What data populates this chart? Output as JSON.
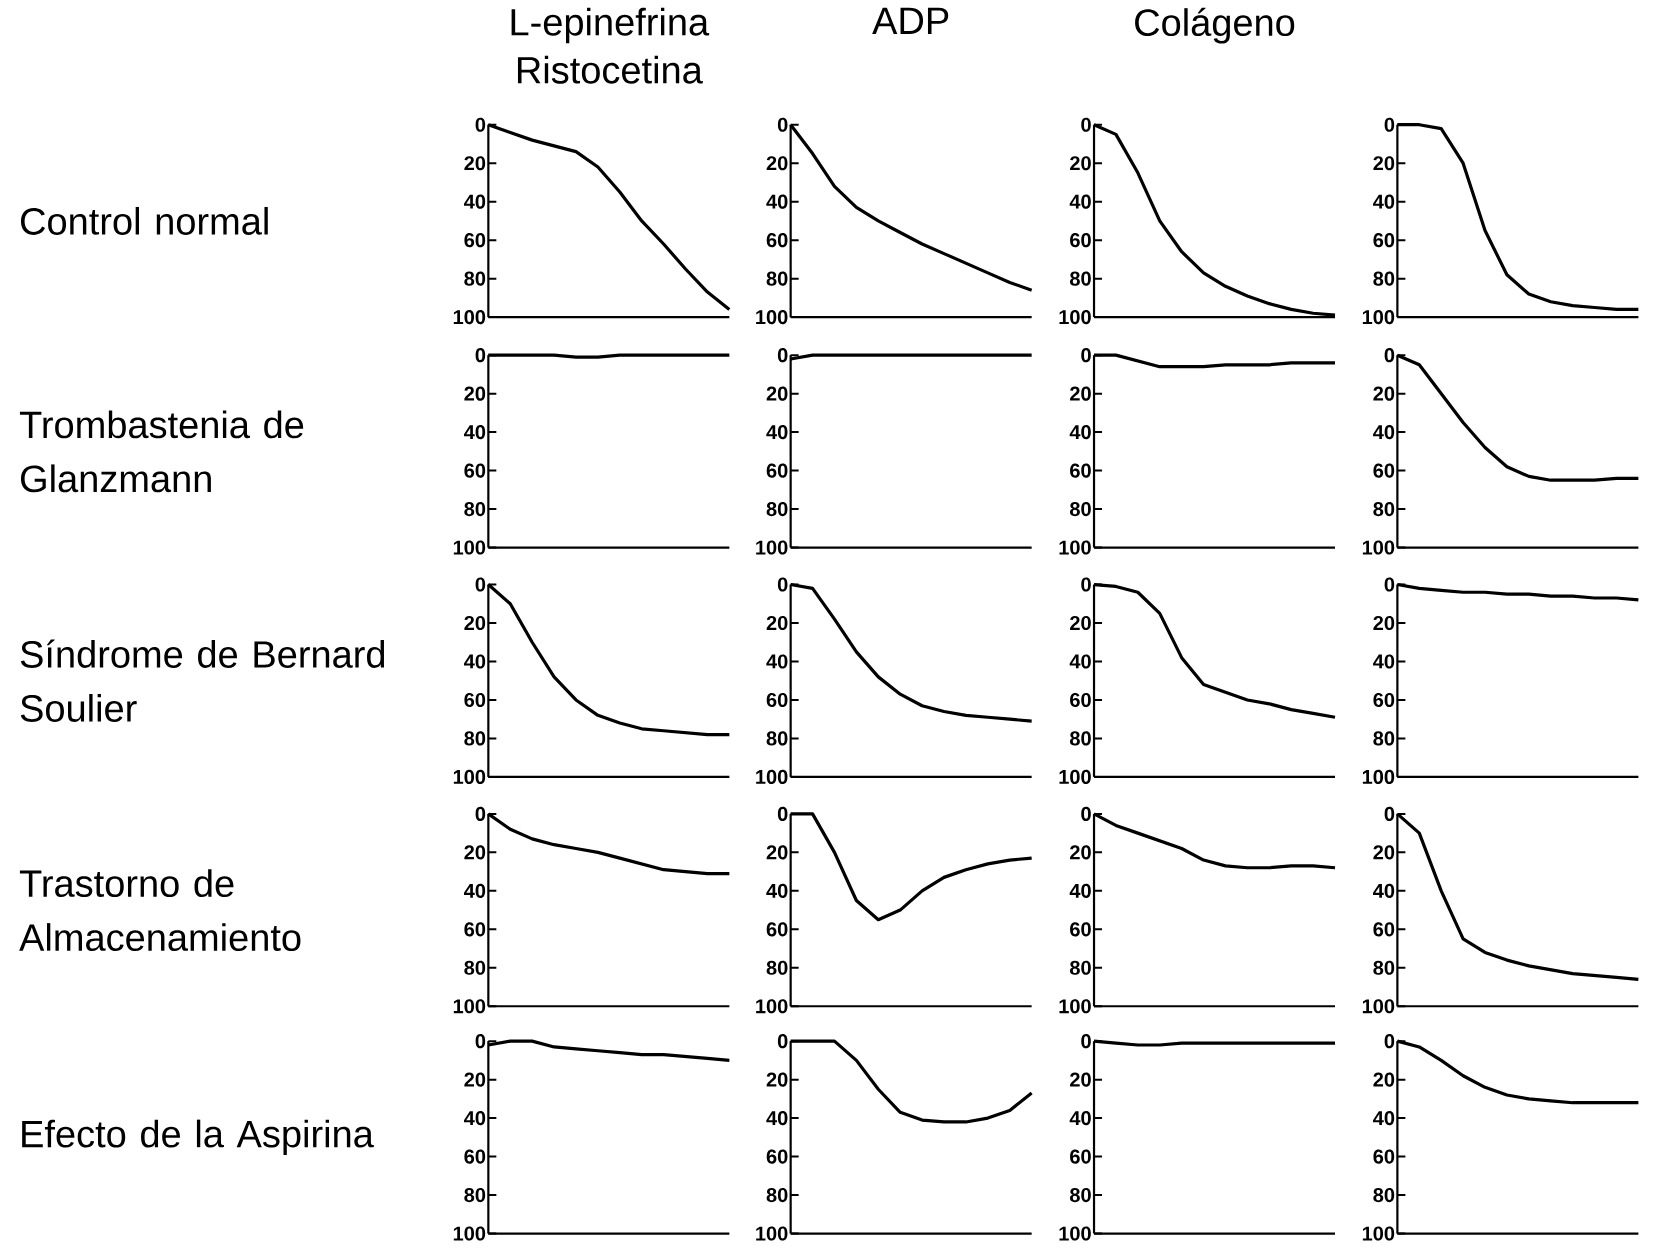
{
  "chart_data": [
    {
      "type": "line",
      "title": "L-epinefrina",
      "subtitle": "Ristocetina",
      "ylabel": "Control normal",
      "categories": [
        null,
        null,
        null,
        null,
        null,
        null,
        null,
        null,
        null,
        null,
        null,
        null
      ],
      "values": [
        0,
        4,
        8,
        11,
        14,
        22,
        35,
        50,
        62,
        75,
        87,
        96
      ],
      "color": "#000000",
      "ylim": [
        100,
        0
      ],
      "yticks": [
        0,
        20,
        40,
        60,
        80,
        100
      ],
      "tick_labels": "y"
    },
    {
      "type": "line",
      "title": "ADP",
      "categories": [
        null,
        null,
        null,
        null,
        null,
        null,
        null,
        null,
        null,
        null,
        null,
        null
      ],
      "values": [
        0,
        15,
        32,
        43,
        50,
        56,
        62,
        67,
        72,
        77,
        82,
        86
      ],
      "color": "#000000",
      "ylim": [
        100,
        0
      ],
      "yticks": [
        0,
        20,
        40,
        60,
        80,
        100
      ],
      "tick_labels": "y"
    },
    {
      "type": "line",
      "title": "Colágeno",
      "categories": [
        null,
        null,
        null,
        null,
        null,
        null,
        null,
        null,
        null,
        null,
        null,
        null
      ],
      "values": [
        0,
        5,
        25,
        50,
        66,
        77,
        84,
        89,
        93,
        96,
        98,
        99
      ],
      "color": "#000000",
      "ylim": [
        100,
        0
      ],
      "yticks": [
        0,
        20,
        40,
        60,
        80,
        100
      ],
      "tick_labels": "y"
    },
    {
      "type": "line",
      "categories": [
        null,
        null,
        null,
        null,
        null,
        null,
        null,
        null,
        null,
        null,
        null,
        null
      ],
      "values": [
        0,
        0,
        2,
        20,
        55,
        78,
        88,
        92,
        94,
        95,
        96,
        96
      ],
      "color": "#000000",
      "ylim": [
        100,
        0
      ],
      "yticks": [
        0,
        20,
        40,
        60,
        80,
        100
      ],
      "tick_labels": "y"
    },
    {
      "type": "line",
      "ylabel": "Trombastenia de Glanzmann",
      "categories": [
        null,
        null,
        null,
        null,
        null,
        null,
        null,
        null,
        null,
        null,
        null,
        null
      ],
      "values": [
        0,
        0,
        0,
        0,
        1,
        1,
        0,
        0,
        0,
        0,
        0,
        0
      ],
      "color": "#000000",
      "ylim": [
        100,
        0
      ],
      "yticks": [
        0,
        20,
        40,
        60,
        80,
        100
      ],
      "tick_labels": "y"
    },
    {
      "type": "line",
      "categories": [
        null,
        null,
        null,
        null,
        null,
        null,
        null,
        null,
        null,
        null,
        null,
        null
      ],
      "values": [
        2,
        0,
        0,
        0,
        0,
        0,
        0,
        0,
        0,
        0,
        0,
        0
      ],
      "color": "#000000",
      "ylim": [
        100,
        0
      ],
      "yticks": [
        0,
        20,
        40,
        60,
        80,
        100
      ],
      "tick_labels": "y"
    },
    {
      "type": "line",
      "categories": [
        null,
        null,
        null,
        null,
        null,
        null,
        null,
        null,
        null,
        null,
        null,
        null
      ],
      "values": [
        0,
        0,
        3,
        6,
        6,
        6,
        5,
        5,
        5,
        4,
        4,
        4
      ],
      "color": "#000000",
      "ylim": [
        100,
        0
      ],
      "yticks": [
        0,
        20,
        40,
        60,
        80,
        100
      ],
      "tick_labels": "y"
    },
    {
      "type": "line",
      "categories": [
        null,
        null,
        null,
        null,
        null,
        null,
        null,
        null,
        null,
        null,
        null,
        null
      ],
      "values": [
        0,
        5,
        20,
        35,
        48,
        58,
        63,
        65,
        65,
        65,
        64,
        64
      ],
      "color": "#000000",
      "ylim": [
        100,
        0
      ],
      "yticks": [
        0,
        20,
        40,
        60,
        80,
        100
      ],
      "tick_labels": "y"
    },
    {
      "type": "line",
      "ylabel": "Síndrome de Bernard Soulier",
      "categories": [
        null,
        null,
        null,
        null,
        null,
        null,
        null,
        null,
        null,
        null,
        null,
        null
      ],
      "values": [
        0,
        10,
        30,
        48,
        60,
        68,
        72,
        75,
        76,
        77,
        78,
        78
      ],
      "color": "#000000",
      "ylim": [
        100,
        0
      ],
      "yticks": [
        0,
        20,
        40,
        60,
        80,
        100
      ],
      "tick_labels": "y"
    },
    {
      "type": "line",
      "categories": [
        null,
        null,
        null,
        null,
        null,
        null,
        null,
        null,
        null,
        null,
        null,
        null
      ],
      "values": [
        0,
        2,
        18,
        35,
        48,
        57,
        63,
        66,
        68,
        69,
        70,
        71
      ],
      "color": "#000000",
      "ylim": [
        100,
        0
      ],
      "yticks": [
        0,
        20,
        40,
        60,
        80,
        100
      ],
      "tick_labels": "y"
    },
    {
      "type": "line",
      "categories": [
        null,
        null,
        null,
        null,
        null,
        null,
        null,
        null,
        null,
        null,
        null,
        null
      ],
      "values": [
        0,
        1,
        4,
        15,
        38,
        52,
        56,
        60,
        62,
        65,
        67,
        69
      ],
      "color": "#000000",
      "ylim": [
        100,
        0
      ],
      "yticks": [
        0,
        20,
        40,
        60,
        80,
        100
      ],
      "tick_labels": "y"
    },
    {
      "type": "line",
      "categories": [
        null,
        null,
        null,
        null,
        null,
        null,
        null,
        null,
        null,
        null,
        null,
        null
      ],
      "values": [
        0,
        2,
        3,
        4,
        4,
        5,
        5,
        6,
        6,
        7,
        7,
        8
      ],
      "color": "#000000",
      "ylim": [
        100,
        0
      ],
      "yticks": [
        0,
        20,
        40,
        60,
        80,
        100
      ],
      "tick_labels": "y"
    },
    {
      "type": "line",
      "ylabel": "Trastorno de Almacenamiento",
      "categories": [
        null,
        null,
        null,
        null,
        null,
        null,
        null,
        null,
        null,
        null,
        null,
        null
      ],
      "values": [
        0,
        8,
        13,
        16,
        18,
        20,
        23,
        26,
        29,
        30,
        31,
        31
      ],
      "color": "#000000",
      "ylim": [
        100,
        0
      ],
      "yticks": [
        0,
        20,
        40,
        60,
        80,
        100
      ],
      "tick_labels": "y"
    },
    {
      "type": "line",
      "categories": [
        null,
        null,
        null,
        null,
        null,
        null,
        null,
        null,
        null,
        null,
        null,
        null
      ],
      "values": [
        0,
        0,
        20,
        45,
        55,
        50,
        40,
        33,
        29,
        26,
        24,
        23
      ],
      "color": "#000000",
      "ylim": [
        100,
        0
      ],
      "yticks": [
        0,
        20,
        40,
        60,
        80,
        100
      ],
      "tick_labels": "y"
    },
    {
      "type": "line",
      "categories": [
        null,
        null,
        null,
        null,
        null,
        null,
        null,
        null,
        null,
        null,
        null,
        null
      ],
      "values": [
        0,
        6,
        10,
        14,
        18,
        24,
        27,
        28,
        28,
        27,
        27,
        28
      ],
      "color": "#000000",
      "ylim": [
        100,
        0
      ],
      "yticks": [
        0,
        20,
        40,
        60,
        80,
        100
      ],
      "tick_labels": "y"
    },
    {
      "type": "line",
      "categories": [
        null,
        null,
        null,
        null,
        null,
        null,
        null,
        null,
        null,
        null,
        null,
        null
      ],
      "values": [
        0,
        10,
        40,
        65,
        72,
        76,
        79,
        81,
        83,
        84,
        85,
        86
      ],
      "color": "#000000",
      "ylim": [
        100,
        0
      ],
      "yticks": [
        0,
        20,
        40,
        60,
        80,
        100
      ],
      "tick_labels": "y"
    },
    {
      "type": "line",
      "ylabel": "Efecto  de la Aspirina",
      "categories": [
        null,
        null,
        null,
        null,
        null,
        null,
        null,
        null,
        null,
        null,
        null,
        null
      ],
      "values": [
        2,
        0,
        0,
        3,
        4,
        5,
        6,
        7,
        7,
        8,
        9,
        10
      ],
      "color": "#000000",
      "ylim": [
        100,
        0
      ],
      "yticks": [
        0,
        20,
        40,
        60,
        80,
        100
      ],
      "tick_labels": "y"
    },
    {
      "type": "line",
      "categories": [
        null,
        null,
        null,
        null,
        null,
        null,
        null,
        null,
        null,
        null,
        null,
        null
      ],
      "values": [
        0,
        0,
        0,
        10,
        25,
        37,
        41,
        42,
        42,
        40,
        36,
        27
      ],
      "color": "#000000",
      "ylim": [
        100,
        0
      ],
      "yticks": [
        0,
        20,
        40,
        60,
        80,
        100
      ],
      "tick_labels": "y"
    },
    {
      "type": "line",
      "categories": [
        null,
        null,
        null,
        null,
        null,
        null,
        null,
        null,
        null,
        null,
        null,
        null
      ],
      "values": [
        0,
        1,
        2,
        2,
        1,
        1,
        1,
        1,
        1,
        1,
        1,
        1
      ],
      "color": "#000000",
      "ylim": [
        100,
        0
      ],
      "yticks": [
        0,
        20,
        40,
        60,
        80,
        100
      ],
      "tick_labels": "y"
    },
    {
      "type": "line",
      "categories": [
        null,
        null,
        null,
        null,
        null,
        null,
        null,
        null,
        null,
        null,
        null,
        null
      ],
      "values": [
        0,
        3,
        10,
        18,
        24,
        28,
        30,
        31,
        32,
        32,
        32,
        32
      ],
      "color": "#000000",
      "ylim": [
        100,
        0
      ],
      "yticks": [
        0,
        20,
        40,
        60,
        80,
        100
      ],
      "tick_labels": "y"
    }
  ]
}
